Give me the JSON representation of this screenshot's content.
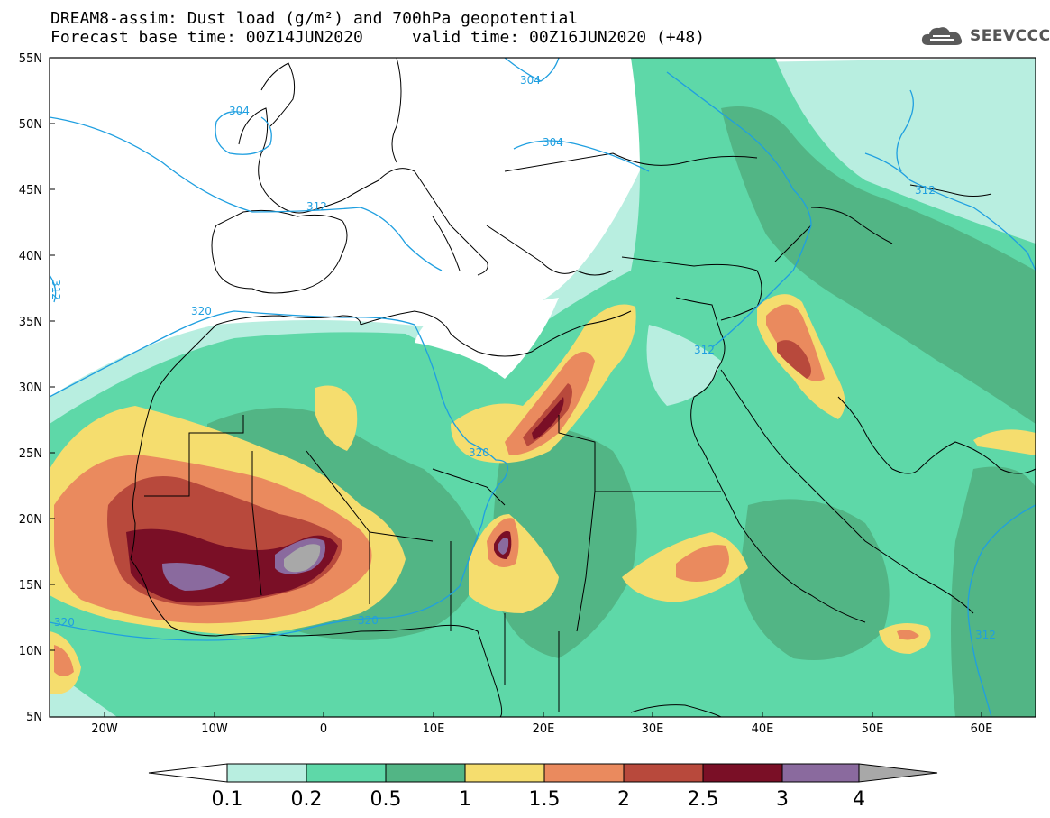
{
  "header": {
    "title_line": "DREAM8-assim: Dust load (g/m²) and 700hPa geopotential",
    "base_time_label": "Forecast base time: 00Z14JUN2020",
    "valid_time_label": "valid time: 00Z16JUN2020 (+48)"
  },
  "logo": {
    "text": "SEEVCCC",
    "icon": "cloud-logo-icon"
  },
  "map": {
    "lat_labels": [
      "55N",
      "50N",
      "45N",
      "40N",
      "35N",
      "30N",
      "25N",
      "20N",
      "15N",
      "10N",
      "5N"
    ],
    "lon_labels": [
      "20W",
      "10W",
      "0",
      "10E",
      "20E",
      "30E",
      "40E",
      "50E",
      "60E"
    ],
    "contour_labels": [
      "304",
      "304",
      "304",
      "312",
      "312",
      "312",
      "312",
      "320",
      "320",
      "320",
      "320",
      "312"
    ]
  },
  "colorbar": {
    "labels": [
      "0.1",
      "0.2",
      "0.5",
      "1",
      "1.5",
      "2",
      "2.5",
      "3",
      "4"
    ],
    "colors": [
      "#ffffff",
      "#b8eee0",
      "#5ed8a8",
      "#52b585",
      "#f5dd6e",
      "#ea8a5e",
      "#b8493c",
      "#7a0f26",
      "#8a6a9e",
      "#a8a8a8"
    ]
  }
}
